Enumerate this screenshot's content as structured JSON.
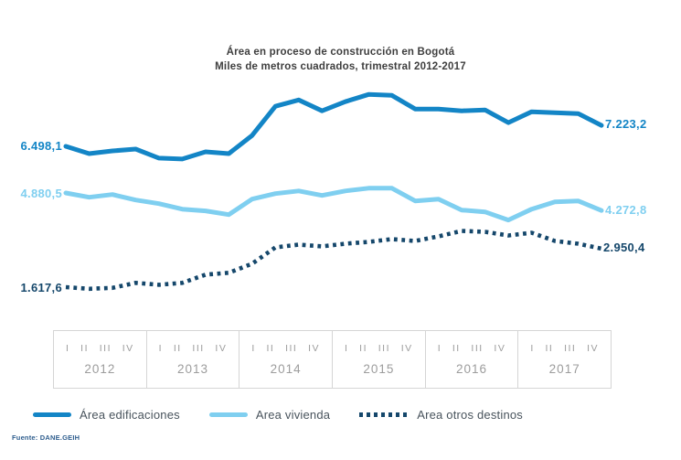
{
  "title": {
    "line1": "Área en proceso de construcción en Bogotá",
    "line2": "Miles de metros cuadrados, trimestral 2012-2017"
  },
  "chart_data": {
    "type": "line",
    "title": "Área en proceso de construcción en Bogotá",
    "subtitle": "Miles de metros cuadrados, trimestral 2012-2017",
    "xlabel": "",
    "ylabel": "",
    "grid": false,
    "legend_position": "bottom",
    "categories": [
      "2012-I",
      "2012-II",
      "2012-III",
      "2012-IV",
      "2013-I",
      "2013-II",
      "2013-III",
      "2013-IV",
      "2014-I",
      "2014-II",
      "2014-III",
      "2014-IV",
      "2015-I",
      "2015-II",
      "2015-III",
      "2015-IV",
      "2016-I",
      "2016-II",
      "2016-III",
      "2016-IV",
      "2017-I",
      "2017-II",
      "2017-III",
      "2017-IV"
    ],
    "series": [
      {
        "name": "Área edificaciones",
        "color": "#1385C6",
        "style": "solid",
        "start_label": "6.498,1",
        "end_label": "7.223,2",
        "values": [
          6498.1,
          6246,
          6341,
          6404,
          6088,
          6057,
          6309,
          6246,
          6877,
          7886,
          8107,
          7729,
          8044,
          8297,
          8265,
          7792,
          7792,
          7729,
          7760,
          7319,
          7697,
          7666,
          7634,
          7223.2
        ]
      },
      {
        "name": "Area vivienda",
        "color": "#7FCFF0",
        "style": "solid",
        "start_label": "4.880,5",
        "end_label": "4.272,8",
        "values": [
          4880.5,
          4732,
          4827,
          4637,
          4511,
          4322,
          4259,
          4132,
          4669,
          4858,
          4953,
          4795,
          4953,
          5047,
          5047,
          4606,
          4669,
          4290,
          4227,
          3943,
          4322,
          4574,
          4606,
          4272.8
        ]
      },
      {
        "name": "Area otros destinos",
        "color": "#15476B",
        "style": "dotted",
        "start_label": "1.617,6",
        "end_label": "2.950,4",
        "values": [
          1617.6,
          1560,
          1590,
          1767,
          1700,
          1767,
          2050,
          2114,
          2429,
          2997,
          3092,
          3029,
          3123,
          3186,
          3281,
          3218,
          3375,
          3565,
          3533,
          3407,
          3502,
          3218,
          3123,
          2950.4
        ]
      }
    ],
    "source": "Fuente: DANE.GEIH"
  },
  "axis": {
    "years": [
      {
        "label": "2012",
        "quarters": [
          "I",
          "II",
          "III",
          "IV"
        ]
      },
      {
        "label": "2013",
        "quarters": [
          "I",
          "II",
          "III",
          "IV"
        ]
      },
      {
        "label": "2014",
        "quarters": [
          "I",
          "II",
          "III",
          "IV"
        ]
      },
      {
        "label": "2015",
        "quarters": [
          "I",
          "II",
          "III",
          "IV"
        ]
      },
      {
        "label": "2016",
        "quarters": [
          "I",
          "II",
          "III",
          "IV"
        ]
      },
      {
        "label": "2017",
        "quarters": [
          "I",
          "II",
          "III",
          "IV"
        ]
      }
    ]
  },
  "footer": {
    "source": "Fuente: DANE.GEIH"
  }
}
